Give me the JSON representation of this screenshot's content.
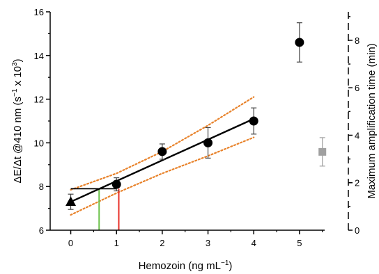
{
  "chart_data": {
    "type": "scatter",
    "xlabel_main": "Hemozoin (ng mL",
    "xlabel_sup": "−1",
    "xlabel_end": ")",
    "ylabel_parts": {
      "a": "ΔE/Δt @410 nm (s",
      "sup1": "−1",
      "b": " x 10",
      "sup2": "3",
      "c": ")"
    },
    "y2label": "Maximum amplification time (min)",
    "xlim": [
      -0.45,
      5.55
    ],
    "ylim": [
      6,
      16
    ],
    "y2lim": [
      0,
      9.2
    ],
    "x_ticks": [
      0,
      1,
      2,
      3,
      4,
      5
    ],
    "x_tick_labels": [
      "0",
      "1",
      "2",
      "3",
      "4",
      "5"
    ],
    "y_ticks": [
      6,
      8,
      10,
      12,
      14,
      16
    ],
    "y_tick_labels": [
      "6",
      "8",
      "10",
      "12",
      "14",
      "16"
    ],
    "y2_ticks": [
      0,
      2,
      4,
      6,
      8
    ],
    "y2_tick_labels": [
      "0",
      "2",
      "4",
      "6",
      "8"
    ],
    "series": [
      {
        "marker": "circle",
        "color": "#000000",
        "points": [
          {
            "x": 1,
            "y": 8.1,
            "err": 0.3
          },
          {
            "x": 2,
            "y": 9.6,
            "err": 0.35
          },
          {
            "x": 3,
            "y": 10.0,
            "err": 0.7
          },
          {
            "x": 4,
            "y": 11.0,
            "err": 0.6
          },
          {
            "x": 5,
            "y": 14.6,
            "err": 0.9
          }
        ]
      },
      {
        "marker": "triangle",
        "color": "#000000",
        "points": [
          {
            "x": 0,
            "y": 7.3,
            "err": 0.35
          }
        ]
      },
      {
        "marker": "square",
        "axis": "right",
        "color": "#a0a0a0",
        "points": [
          {
            "x": 5.5,
            "y": 3.3,
            "err": 0.6
          }
        ]
      }
    ],
    "fit_line": {
      "x": [
        0,
        4
      ],
      "y": [
        7.3,
        11.1
      ],
      "color": "#000000"
    },
    "confidence_band": {
      "color": "#e8822a",
      "upper": [
        [
          0,
          7.85
        ],
        [
          1,
          8.6
        ],
        [
          2,
          9.6
        ],
        [
          3,
          10.8
        ],
        [
          4,
          12.1
        ]
      ],
      "lower": [
        [
          0,
          6.7
        ],
        [
          1,
          7.7
        ],
        [
          2,
          8.6
        ],
        [
          3,
          9.4
        ],
        [
          4,
          10.25
        ]
      ]
    },
    "blank_threshold": {
      "y": 7.9,
      "x": [
        0,
        1.0
      ],
      "color": "#000000"
    },
    "lod_lines": [
      {
        "x": 0.62,
        "y_top": 7.9,
        "color": "#6cc24a"
      },
      {
        "x": 1.05,
        "y_top": 7.9,
        "color": "#e8302a"
      }
    ],
    "grid": false
  }
}
